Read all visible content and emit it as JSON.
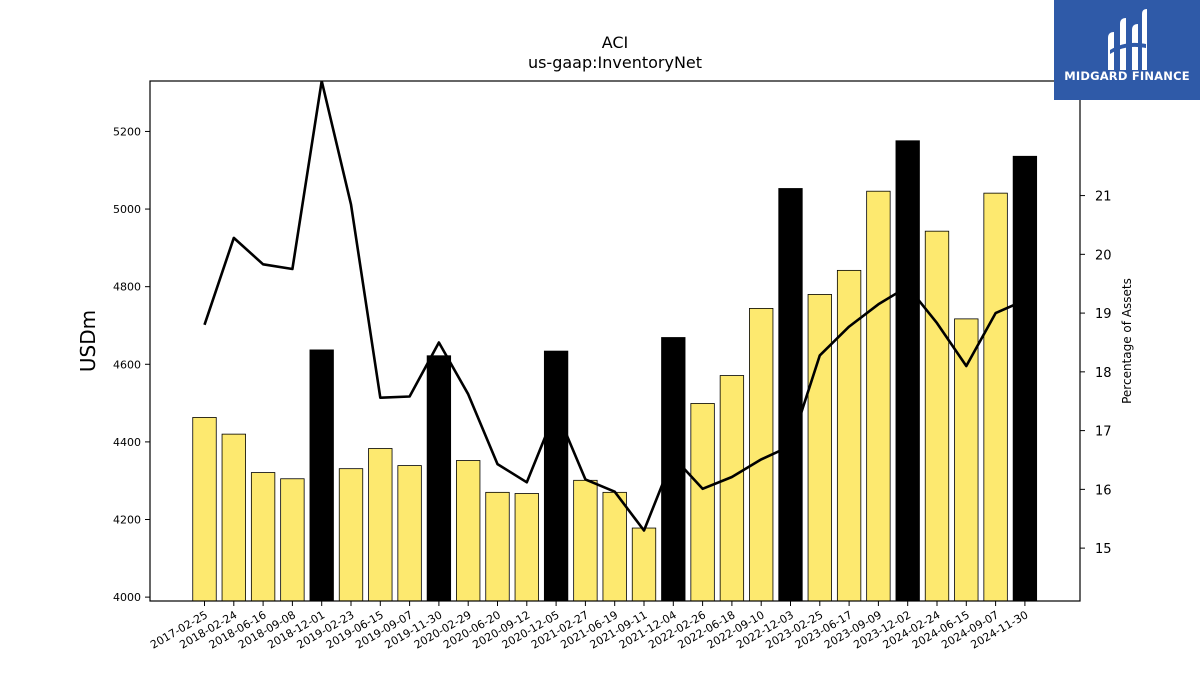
{
  "chart_data": {
    "type": "bar",
    "title": "ACI",
    "subtitle": "us-gaap:InventoryNet",
    "ylabel": "USDm",
    "y2label": "Percentage of Assets",
    "ylim": [
      3990,
      5330
    ],
    "y2lim": [
      14.1,
      22.95
    ],
    "yticks": [
      4000,
      4200,
      4400,
      4600,
      4800,
      5000,
      5200
    ],
    "y2ticks": [
      15,
      16,
      17,
      18,
      19,
      20,
      21
    ],
    "grid": false,
    "categories": [
      "2017-02-25",
      "2018-02-24",
      "2018-06-16",
      "2018-09-08",
      "2018-12-01",
      "2019-02-23",
      "2019-06-15",
      "2019-09-07",
      "2019-11-30",
      "2020-02-29",
      "2020-06-20",
      "2020-09-12",
      "2020-12-05",
      "2021-02-27",
      "2021-06-19",
      "2021-09-11",
      "2021-12-04",
      "2022-02-26",
      "2022-06-18",
      "2022-09-10",
      "2022-12-03",
      "2023-02-25",
      "2023-06-17",
      "2023-09-09",
      "2023-12-02",
      "2024-02-24",
      "2024-06-15",
      "2024-09-07",
      "2024-11-30"
    ],
    "series": [
      {
        "kind": "bar",
        "axis": "left",
        "values": [
          4463,
          4420,
          4321,
          4305,
          4637,
          4331,
          4383,
          4339,
          4622,
          4352,
          4270,
          4267,
          4634,
          4301,
          4270,
          4178,
          4669,
          4499,
          4571,
          4744,
          5053,
          4780,
          4842,
          5046,
          5176,
          4943,
          4717,
          5041,
          5136
        ],
        "highlight": [
          false,
          false,
          false,
          false,
          true,
          false,
          false,
          false,
          true,
          false,
          false,
          false,
          true,
          false,
          false,
          false,
          true,
          false,
          false,
          false,
          true,
          false,
          false,
          false,
          true,
          false,
          false,
          false,
          true
        ]
      },
      {
        "kind": "line",
        "axis": "right",
        "values": [
          18.8,
          20.28,
          19.83,
          19.75,
          22.95,
          20.85,
          17.56,
          17.58,
          18.5,
          17.62,
          16.43,
          16.12,
          17.35,
          16.17,
          15.96,
          15.3,
          16.55,
          16.01,
          16.21,
          16.51,
          16.74,
          18.28,
          18.77,
          19.15,
          19.45,
          18.83,
          18.1,
          19.0,
          19.22
        ]
      }
    ],
    "colors": {
      "bar": "#fde96f",
      "bar_highlight": "#000000",
      "line": "#000000"
    }
  },
  "logo": {
    "text": "MIDGARD FINANCE",
    "background": "#2f5aa8"
  }
}
